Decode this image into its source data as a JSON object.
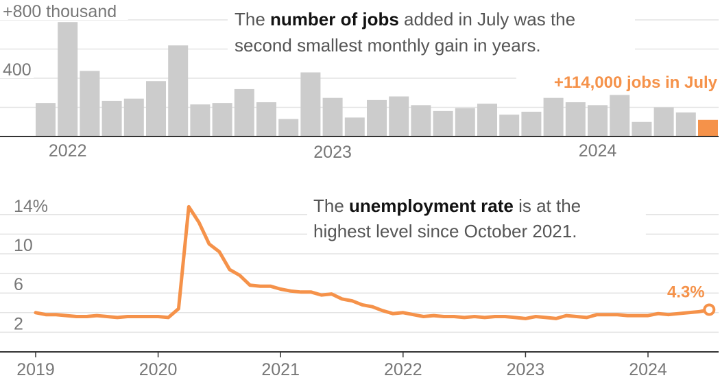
{
  "chart_data": [
    {
      "type": "bar",
      "ylim": [
        0,
        800
      ],
      "y_ticks": [
        {
          "value": 800,
          "label": "+800 thousand"
        },
        {
          "value": 400,
          "label": "400"
        }
      ],
      "x_labels": [
        {
          "label": "2022",
          "index": 1
        },
        {
          "label": "2023",
          "index": 13
        },
        {
          "label": "2024",
          "index": 25
        }
      ],
      "grid": true,
      "values": [
        230,
        785,
        450,
        245,
        260,
        380,
        625,
        220,
        230,
        325,
        235,
        120,
        440,
        265,
        130,
        250,
        275,
        215,
        175,
        195,
        225,
        150,
        170,
        265,
        235,
        215,
        285,
        100,
        200,
        165,
        114
      ],
      "highlight_index": 30,
      "highlight_label": "+114,000 jobs in July",
      "annotation": {
        "line1": [
          "The ",
          "number of jobs",
          " added in July was the"
        ],
        "line2": "second smallest monthly gain in years."
      }
    },
    {
      "type": "line",
      "ylim": [
        0,
        16
      ],
      "y_ticks": [
        {
          "value": 14,
          "label": "14%"
        },
        {
          "value": 10,
          "label": "10"
        },
        {
          "value": 6,
          "label": "6"
        },
        {
          "value": 2,
          "label": "2"
        }
      ],
      "x_ticks": [
        "2019",
        "2020",
        "2021",
        "2022",
        "2023",
        "2024"
      ],
      "start_year": 2019,
      "grid": true,
      "values": [
        4.0,
        3.8,
        3.8,
        3.7,
        3.6,
        3.6,
        3.7,
        3.6,
        3.5,
        3.6,
        3.6,
        3.6,
        3.6,
        3.5,
        4.4,
        14.8,
        13.2,
        11.0,
        10.2,
        8.4,
        7.8,
        6.8,
        6.7,
        6.7,
        6.4,
        6.2,
        6.1,
        6.1,
        5.8,
        5.9,
        5.4,
        5.2,
        4.8,
        4.6,
        4.2,
        3.9,
        4.0,
        3.8,
        3.6,
        3.7,
        3.6,
        3.6,
        3.5,
        3.6,
        3.5,
        3.6,
        3.6,
        3.5,
        3.4,
        3.6,
        3.5,
        3.4,
        3.7,
        3.6,
        3.5,
        3.8,
        3.8,
        3.8,
        3.7,
        3.7,
        3.7,
        3.9,
        3.8,
        3.9,
        4.0,
        4.1,
        4.3
      ],
      "highlight_label": "4.3%",
      "annotation": {
        "line1": [
          "The ",
          "unemployment rate",
          " is at the"
        ],
        "line2": "highest level since October 2021."
      }
    }
  ],
  "colors": {
    "bar": "#cccccc",
    "highlight": "#f5924a",
    "grid": "#e3e3e3",
    "axis": "#333333",
    "tick_text": "#777777",
    "annotation": "#555555",
    "annotation_bold": "#121212"
  }
}
